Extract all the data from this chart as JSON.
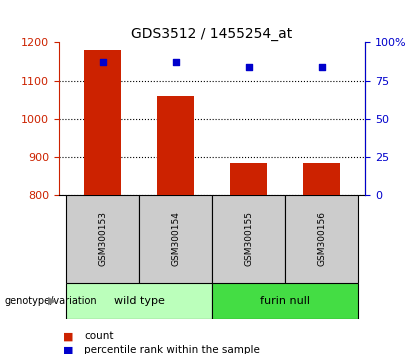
{
  "title": "GDS3512 / 1455254_at",
  "samples": [
    "GSM300153",
    "GSM300154",
    "GSM300155",
    "GSM300156"
  ],
  "count_values": [
    1180,
    1060,
    882,
    882
  ],
  "percentile_values": [
    87,
    87,
    84,
    84
  ],
  "ylim_left": [
    800,
    1200
  ],
  "ylim_right": [
    0,
    100
  ],
  "yticks_left": [
    800,
    900,
    1000,
    1100,
    1200
  ],
  "yticks_right": [
    0,
    25,
    50,
    75,
    100
  ],
  "bar_color": "#cc2200",
  "dot_color": "#0000cc",
  "left_axis_color": "#cc2200",
  "right_axis_color": "#0000cc",
  "grid_color": "#000000",
  "groups": [
    {
      "label": "wild type",
      "indices": [
        0,
        1
      ],
      "color": "#bbffbb"
    },
    {
      "label": "furin null",
      "indices": [
        2,
        3
      ],
      "color": "#44dd44"
    }
  ],
  "xlabel_area_color": "#cccccc",
  "group_label": "genotype/variation",
  "legend_count": "count",
  "legend_percentile": "percentile rank within the sample",
  "background_color": "#ffffff",
  "bar_width": 0.5,
  "title_fontsize": 10,
  "tick_fontsize": 8,
  "sample_fontsize": 6.5,
  "group_fontsize": 8,
  "legend_fontsize": 7.5
}
